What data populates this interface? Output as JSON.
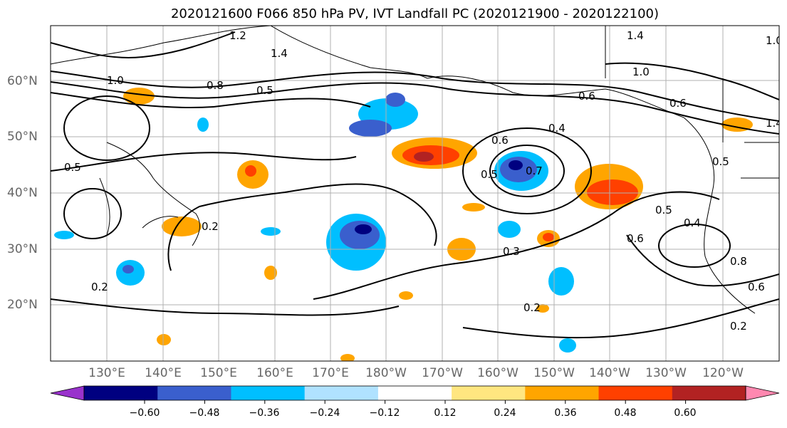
{
  "title": "2020121600 F066 850 hPa PV, IVT Landfall PC (2020121900 - 2020122100)",
  "latitude_labels": [
    "60°N",
    "50°N",
    "40°N",
    "30°N",
    "20°N"
  ],
  "longitude_labels": [
    "130°E",
    "140°E",
    "150°E",
    "160°E",
    "170°E",
    "180°W",
    "170°W",
    "160°W",
    "150°W",
    "140°W",
    "130°W",
    "120°W"
  ],
  "colorbar": {
    "tick_labels": [
      "−0.60",
      "−0.48",
      "−0.36",
      "−0.24",
      "−0.12",
      "0.12",
      "0.24",
      "0.36",
      "0.48",
      "0.60"
    ],
    "bin_colors": [
      "#9932cc",
      "#000080",
      "#3a5fcd",
      "#00bfff",
      "#b0e2ff",
      "#ffffff",
      "#ffe680",
      "#ffa500",
      "#ff4000",
      "#b22222",
      "#ff88b0"
    ]
  },
  "contour_labels": [
    "1.2",
    "1.4",
    "1.4",
    "1.0",
    "1.4",
    "1.0",
    "0.8",
    "0.5",
    "0.6",
    "0.4",
    "0.6",
    "0.5",
    "0.7",
    "0.5",
    "0.4",
    "0.5",
    "0.6",
    "0.3",
    "0.2",
    "0.2",
    "0.2",
    "0.6",
    "0.8",
    "0.6",
    "0.5",
    "0.2",
    "1.0"
  ],
  "colors": {
    "land_line": "#000000",
    "grid": "#b0b0b0",
    "contour": "#000000"
  }
}
